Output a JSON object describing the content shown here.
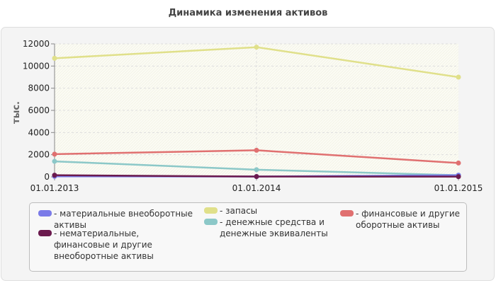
{
  "chart_data": {
    "type": "line",
    "title": "Динамика изменения активов",
    "ylabel": "тыс.",
    "xlabel": "",
    "categories": [
      "01.01.2013",
      "01.01.2014",
      "01.01.2015"
    ],
    "ylim": [
      0,
      12000
    ],
    "yticks": [
      "0",
      "2000",
      "4000",
      "6000",
      "8000",
      "10000",
      "12000"
    ],
    "series": [
      {
        "name": "- материальные внеоборотные активы",
        "color": "#7b7be8",
        "values": [
          50,
          30,
          150
        ]
      },
      {
        "name": "- нематериальные, финансовые и другие внеоборотные активы",
        "color": "#6b1a4e",
        "values": [
          150,
          30,
          20
        ]
      },
      {
        "name": "- запасы",
        "color": "#e0e08a",
        "values": [
          10700,
          11700,
          9000
        ]
      },
      {
        "name": "- денежные средства и денежные эквиваленты",
        "color": "#8cc8c8",
        "values": [
          1400,
          650,
          150
        ]
      },
      {
        "name": "- финансовые и другие оборотные активы",
        "color": "#e07070",
        "values": [
          2050,
          2400,
          1250
        ]
      }
    ],
    "legend_position": "bottom",
    "grid": true
  }
}
